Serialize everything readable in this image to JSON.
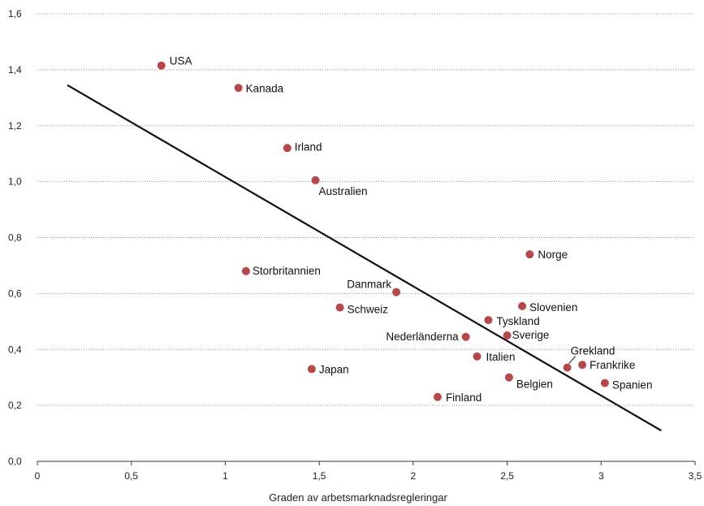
{
  "chart_data": {
    "type": "scatter",
    "title": "",
    "xlabel": "Graden av arbetsmarknadsregleringar",
    "ylabel": "",
    "xlim": [
      0,
      3.5
    ],
    "ylim": [
      0,
      1.6
    ],
    "x_ticks": [
      0,
      0.5,
      1,
      1.5,
      2,
      2.5,
      3,
      3.5
    ],
    "x_tick_labels": [
      "0",
      "0,5",
      "1",
      "1,5",
      "2",
      "2,5",
      "3",
      "3,5"
    ],
    "y_ticks": [
      0,
      0.2,
      0.4,
      0.6,
      0.8,
      1.0,
      1.2,
      1.4,
      1.6
    ],
    "y_tick_labels": [
      "0,0",
      "0,2",
      "0,4",
      "0,6",
      "0,8",
      "1,0",
      "1,2",
      "1,4",
      "1,6"
    ],
    "grid": "horizontal-dotted",
    "point_color": "#b5484b",
    "points": [
      {
        "label": "USA",
        "x": 0.66,
        "y": 1.415
      },
      {
        "label": "Kanada",
        "x": 1.07,
        "y": 1.335
      },
      {
        "label": "Irland",
        "x": 1.33,
        "y": 1.12
      },
      {
        "label": "Australien",
        "x": 1.48,
        "y": 1.005
      },
      {
        "label": "Storbritannien",
        "x": 1.11,
        "y": 0.68
      },
      {
        "label": "Danmark",
        "x": 1.91,
        "y": 0.605
      },
      {
        "label": "Schweiz",
        "x": 1.61,
        "y": 0.55
      },
      {
        "label": "Japan",
        "x": 1.46,
        "y": 0.33
      },
      {
        "label": "Finland",
        "x": 2.13,
        "y": 0.23
      },
      {
        "label": "Nederländerna",
        "x": 2.28,
        "y": 0.445
      },
      {
        "label": "Italien",
        "x": 2.34,
        "y": 0.375
      },
      {
        "label": "Tyskland",
        "x": 2.4,
        "y": 0.505
      },
      {
        "label": "Sverige",
        "x": 2.5,
        "y": 0.45
      },
      {
        "label": "Belgien",
        "x": 2.51,
        "y": 0.3
      },
      {
        "label": "Slovenien",
        "x": 2.58,
        "y": 0.555
      },
      {
        "label": "Norge",
        "x": 2.62,
        "y": 0.74
      },
      {
        "label": "Grekland",
        "x": 2.82,
        "y": 0.335
      },
      {
        "label": "Frankrike",
        "x": 2.9,
        "y": 0.345
      },
      {
        "label": "Spanien",
        "x": 3.02,
        "y": 0.28
      }
    ],
    "trendline": {
      "x": [
        0.16,
        3.32
      ],
      "y": [
        1.345,
        0.11
      ]
    },
    "trendline_color": "#111111"
  }
}
